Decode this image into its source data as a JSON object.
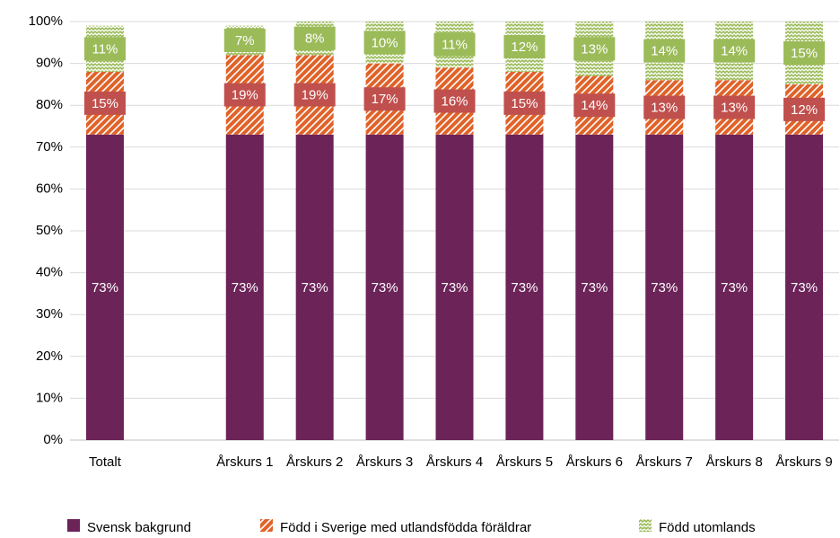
{
  "chart_data": {
    "type": "stacked_bar",
    "categories": [
      "Totalt",
      null,
      "Årskurs 1",
      "Årskurs 2",
      "Årskurs 3",
      "Årskurs 4",
      "Årskurs 5",
      "Årskurs 6",
      "Årskurs 7",
      "Årskurs 8",
      "Årskurs 9"
    ],
    "series": [
      {
        "name": "Svensk bakgrund",
        "color": "#6b2358",
        "pattern": "solid",
        "values": [
          73,
          null,
          73,
          73,
          73,
          73,
          73,
          73,
          73,
          73,
          73
        ],
        "value_labels": [
          "73%",
          null,
          "73%",
          "73%",
          "73%",
          "73%",
          "73%",
          "73%",
          "73%",
          "73%",
          "73%"
        ]
      },
      {
        "name": "Född i Sverige med utlandsfödda föräldrar",
        "color": "#e0632a",
        "pattern": "stripes",
        "label_color": "#c0504d",
        "values": [
          15,
          null,
          19,
          19,
          17,
          16,
          15,
          14,
          13,
          13,
          12
        ],
        "value_labels": [
          "15%",
          null,
          "19%",
          "19%",
          "17%",
          "16%",
          "15%",
          "14%",
          "13%",
          "13%",
          "12%"
        ]
      },
      {
        "name": "Född utomlands",
        "color": "#9bbb59",
        "pattern": "zigzag",
        "label_color": "#9bbb59",
        "values": [
          11,
          null,
          7,
          8,
          10,
          11,
          12,
          13,
          14,
          14,
          15
        ],
        "value_labels": [
          "11%",
          null,
          "7%",
          "8%",
          "10%",
          "11%",
          "12%",
          "13%",
          "14%",
          "14%",
          "15%"
        ]
      }
    ],
    "ylim": [
      0,
      100
    ],
    "yticks": [
      {
        "value": 0,
        "label": "0%"
      },
      {
        "value": 10,
        "label": "10%"
      },
      {
        "value": 20,
        "label": "20%"
      },
      {
        "value": 30,
        "label": "30%"
      },
      {
        "value": 40,
        "label": "40%"
      },
      {
        "value": 50,
        "label": "50%"
      },
      {
        "value": 60,
        "label": "60%"
      },
      {
        "value": 70,
        "label": "70%"
      },
      {
        "value": 80,
        "label": "80%"
      },
      {
        "value": 90,
        "label": "90%"
      },
      {
        "value": 100,
        "label": "100%"
      }
    ],
    "grid": true,
    "legend": "bottom"
  }
}
